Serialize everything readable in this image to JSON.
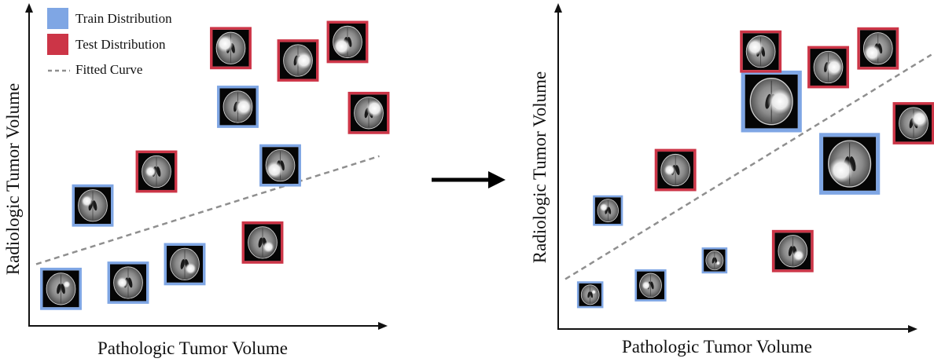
{
  "legend": {
    "train_label": "Train Distribution",
    "test_label": "Test Distribution",
    "fitted_label": "Fitted Curve",
    "train_color": "#7fa6e4",
    "test_color": "#cc3547",
    "fitted_color": "#8f8f8f"
  },
  "chart_data": [
    {
      "type": "scatter",
      "xlabel": "Pathologic Tumor Volume",
      "ylabel": "Radiologic Tumor Volume",
      "grid": false,
      "legend_position": "top-left",
      "fitted_curve": {
        "style": "dashed",
        "from": [
          0.02,
          0.2
        ],
        "to": [
          0.99,
          0.55
        ]
      },
      "series": [
        {
          "name": "Train Distribution",
          "points": [
            {
              "x": 0.09,
              "y": 0.12,
              "size": 1,
              "tumor": "small"
            },
            {
              "x": 0.28,
              "y": 0.14,
              "size": 1,
              "tumor": "medium"
            },
            {
              "x": 0.44,
              "y": 0.2,
              "size": 1,
              "tumor": "medium"
            },
            {
              "x": 0.18,
              "y": 0.39,
              "size": 1,
              "tumor": "medium"
            },
            {
              "x": 0.59,
              "y": 0.71,
              "size": 1,
              "tumor": "large"
            },
            {
              "x": 0.71,
              "y": 0.52,
              "size": 1,
              "tumor": "large"
            }
          ]
        },
        {
          "name": "Test Distribution",
          "points": [
            {
              "x": 0.36,
              "y": 0.5,
              "size": 1,
              "tumor": "medium"
            },
            {
              "x": 0.66,
              "y": 0.27,
              "size": 1,
              "tumor": "medium"
            },
            {
              "x": 0.57,
              "y": 0.9,
              "size": 1,
              "tumor": "large"
            },
            {
              "x": 0.76,
              "y": 0.86,
              "size": 1,
              "tumor": "large"
            },
            {
              "x": 0.9,
              "y": 0.92,
              "size": 1,
              "tumor": "large"
            },
            {
              "x": 0.96,
              "y": 0.69,
              "size": 1,
              "tumor": "large"
            }
          ]
        }
      ]
    },
    {
      "type": "scatter",
      "xlabel": "Pathologic Tumor Volume",
      "ylabel": "Radiologic Tumor Volume",
      "grid": false,
      "legend_position": "none",
      "fitted_curve": {
        "style": "dashed",
        "from": [
          0.02,
          0.16
        ],
        "to": [
          1.05,
          0.88
        ]
      },
      "series": [
        {
          "name": "Train Distribution",
          "points": [
            {
              "x": 0.09,
              "y": 0.11,
              "size": 0.62,
              "tumor": "small"
            },
            {
              "x": 0.26,
              "y": 0.14,
              "size": 0.76,
              "tumor": "medium"
            },
            {
              "x": 0.44,
              "y": 0.22,
              "size": 0.6,
              "tumor": "small"
            },
            {
              "x": 0.14,
              "y": 0.38,
              "size": 0.72,
              "tumor": "medium"
            },
            {
              "x": 0.6,
              "y": 0.73,
              "size": 1.46,
              "tumor": "large"
            },
            {
              "x": 0.82,
              "y": 0.53,
              "size": 1.46,
              "tumor": "large"
            }
          ]
        },
        {
          "name": "Test Distribution",
          "points": [
            {
              "x": 0.33,
              "y": 0.51,
              "size": 1,
              "tumor": "medium"
            },
            {
              "x": 0.66,
              "y": 0.25,
              "size": 1,
              "tumor": "medium"
            },
            {
              "x": 0.57,
              "y": 0.89,
              "size": 1,
              "tumor": "large"
            },
            {
              "x": 0.76,
              "y": 0.84,
              "size": 1,
              "tumor": "large"
            },
            {
              "x": 0.9,
              "y": 0.9,
              "size": 1,
              "tumor": "large"
            },
            {
              "x": 1.0,
              "y": 0.66,
              "size": 1,
              "tumor": "large"
            }
          ]
        }
      ]
    }
  ]
}
